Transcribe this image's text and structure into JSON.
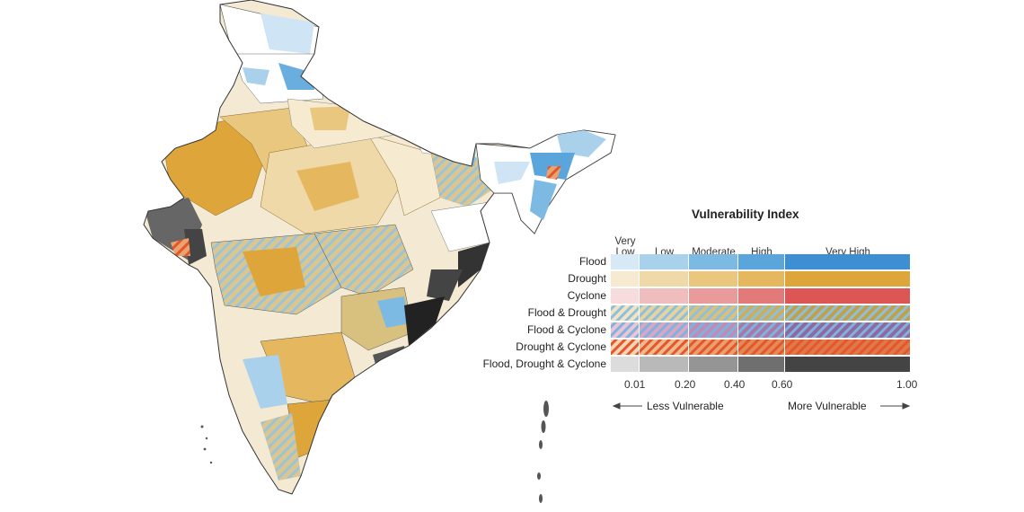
{
  "legend": {
    "title": "Vulnerability Index",
    "bands": [
      {
        "label_line1": "Very",
        "label_line2": "Low"
      },
      {
        "label_line1": "",
        "label_line2": "Low"
      },
      {
        "label_line1": "",
        "label_line2": "Moderate"
      },
      {
        "label_line1": "",
        "label_line2": "High"
      },
      {
        "label_line1": "",
        "label_line2": "Very High"
      }
    ],
    "rows": [
      {
        "label": "Flood",
        "pattern": "solid",
        "colors": [
          "#d6e9f5",
          "#a9d1ec",
          "#7cb9e3",
          "#5aa6dc",
          "#3d8fd1"
        ]
      },
      {
        "label": "Drought",
        "pattern": "solid",
        "colors": [
          "#f6ead0",
          "#f0d9a8",
          "#e9c77f",
          "#e5b85f",
          "#dea53a"
        ]
      },
      {
        "label": "Cyclone",
        "pattern": "solid",
        "colors": [
          "#f6dcdc",
          "#efbdbd",
          "#e99a9a",
          "#e37a7a",
          "#dc5656"
        ]
      },
      {
        "label": "Flood & Drought",
        "pattern": "hatch",
        "colors": [
          "#f1e3c6",
          "#e6d3a2",
          "#d8c17e",
          "#c9ae5f",
          "#bfa04c"
        ],
        "stripe": "#8fc0d8"
      },
      {
        "label": "Flood & Cyclone",
        "pattern": "hatch",
        "colors": [
          "#e9c5d6",
          "#d9a6c5",
          "#c08bb6",
          "#a679aa",
          "#8e6aa3"
        ],
        "stripe": "#7fb2dc"
      },
      {
        "label": "Drought & Cyclone",
        "pattern": "hatch",
        "colors": [
          "#f3d4b3",
          "#eeb98c",
          "#e9a06c",
          "#e48a55",
          "#df7a48"
        ],
        "stripe": "#e4572e"
      },
      {
        "label": "Flood, Drought & Cyclone",
        "pattern": "solid",
        "colors": [
          "#dcdcdc",
          "#b9b9b9",
          "#959595",
          "#6f6f6f",
          "#444444"
        ]
      }
    ],
    "ticks": [
      "0.01",
      "0.20",
      "0.40",
      "0.60",
      "1.00"
    ],
    "tick_values": [
      0.01,
      0.2,
      0.4,
      0.6,
      1.0
    ],
    "arrow_left_label": "Less Vulnerable",
    "arrow_right_label": "More Vulnerable"
  }
}
